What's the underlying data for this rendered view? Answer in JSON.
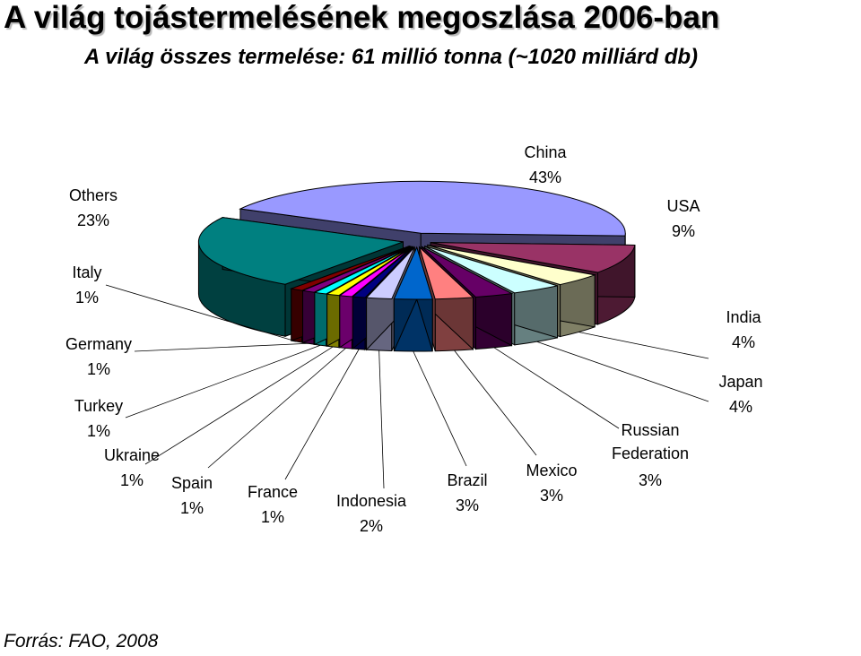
{
  "title": "A világ tojástermelésének megoszlása 2006-ban",
  "subtitle": "A világ összes termelése: 61 millió tonna (~1020 milliárd db)",
  "source": "Forrás: FAO, 2008",
  "chart_data": {
    "type": "pie",
    "style": "3d-exploded",
    "slices": [
      {
        "name": "China",
        "value": 43,
        "label": "43%",
        "color": "#9999ff"
      },
      {
        "name": "USA",
        "value": 9,
        "label": "9%",
        "color": "#993366"
      },
      {
        "name": "India",
        "value": 4,
        "label": "4%",
        "color": "#ffffcc"
      },
      {
        "name": "Japan",
        "value": 4,
        "label": "4%",
        "color": "#ccffff"
      },
      {
        "name": "Russian Federation",
        "value": 3,
        "label": "3%",
        "color": "#660066"
      },
      {
        "name": "Mexico",
        "value": 3,
        "label": "3%",
        "color": "#ff8080"
      },
      {
        "name": "Brazil",
        "value": 3,
        "label": "3%",
        "color": "#0066cc"
      },
      {
        "name": "Indonesia",
        "value": 2,
        "label": "2%",
        "color": "#ccccff"
      },
      {
        "name": "France",
        "value": 1,
        "label": "1%",
        "color": "#000080"
      },
      {
        "name": "Spain",
        "value": 1,
        "label": "1%",
        "color": "#ff00ff"
      },
      {
        "name": "Ukraine",
        "value": 1,
        "label": "1%",
        "color": "#ffff00"
      },
      {
        "name": "Turkey",
        "value": 1,
        "label": "1%",
        "color": "#00ffff"
      },
      {
        "name": "Germany",
        "value": 1,
        "label": "1%",
        "color": "#800080"
      },
      {
        "name": "Italy",
        "value": 1,
        "label": "1%",
        "color": "#800000"
      },
      {
        "name": "Others",
        "value": 23,
        "label": "23%",
        "color": "#008080"
      }
    ]
  }
}
